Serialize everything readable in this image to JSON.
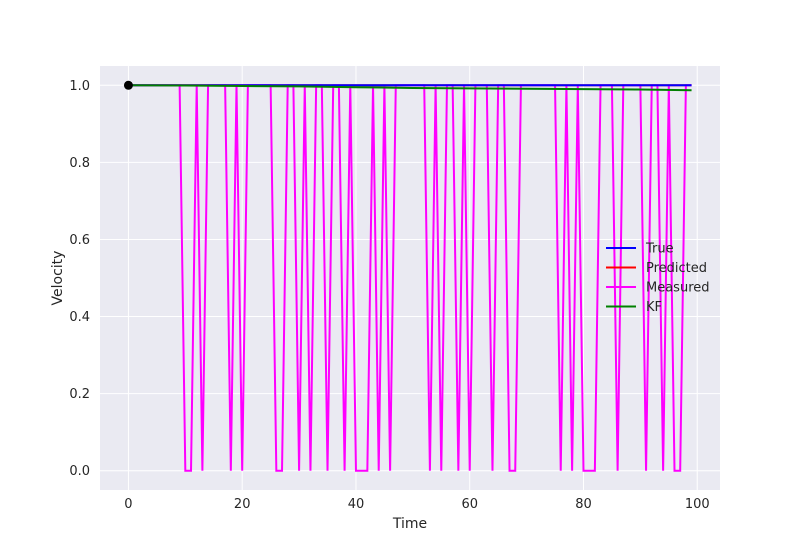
{
  "chart_data": {
    "type": "line",
    "title": "",
    "xlabel": "Time",
    "ylabel": "Velocity",
    "xlim": [
      -5,
      104
    ],
    "ylim": [
      -0.05,
      1.05
    ],
    "xticks": [
      0,
      20,
      40,
      60,
      80,
      100
    ],
    "yticks": [
      0.0,
      0.2,
      0.4,
      0.6,
      0.8,
      1.0
    ],
    "xtick_labels": [
      "0",
      "20",
      "40",
      "60",
      "80",
      "100"
    ],
    "ytick_labels": [
      "0.0",
      "0.2",
      "0.4",
      "0.6",
      "0.8",
      "1.0"
    ],
    "grid": true,
    "legend_position": "center-right",
    "background_color": "#eaeaf2",
    "series": [
      {
        "name": "True",
        "color": "#0000ff",
        "x": [
          0,
          99
        ],
        "values": [
          1.0,
          1.0
        ]
      },
      {
        "name": "Predicted",
        "color": "#ff0000",
        "x": [
          0,
          99
        ],
        "values": [
          1.0,
          1.0
        ]
      },
      {
        "name": "Measured",
        "color": "#ff00ff",
        "x": [
          0,
          1,
          2,
          3,
          4,
          5,
          6,
          7,
          8,
          9,
          10,
          11,
          12,
          13,
          14,
          15,
          16,
          17,
          18,
          19,
          20,
          21,
          22,
          23,
          24,
          25,
          26,
          27,
          28,
          29,
          30,
          31,
          32,
          33,
          34,
          35,
          36,
          37,
          38,
          39,
          40,
          41,
          42,
          43,
          44,
          45,
          46,
          47,
          48,
          49,
          50,
          51,
          52,
          53,
          54,
          55,
          56,
          57,
          58,
          59,
          60,
          61,
          62,
          63,
          64,
          65,
          66,
          67,
          68,
          69,
          70,
          71,
          72,
          73,
          74,
          75,
          76,
          77,
          78,
          79,
          80,
          81,
          82,
          83,
          84,
          85,
          86,
          87,
          88,
          89,
          90,
          91,
          92,
          93,
          94,
          95,
          96,
          97,
          98,
          99
        ],
        "values": [
          1,
          1,
          1,
          1,
          1,
          1,
          1,
          1,
          1,
          1,
          0,
          0,
          1,
          0,
          1,
          1,
          1,
          1,
          0,
          1,
          0,
          1,
          1,
          1,
          1,
          1,
          0,
          0,
          1,
          1,
          0,
          1,
          0,
          1,
          1,
          0,
          1,
          1,
          0,
          1,
          0,
          0,
          0,
          1,
          0,
          1,
          0,
          1,
          1,
          1,
          1,
          1,
          1,
          0,
          1,
          0,
          1,
          1,
          0,
          1,
          0,
          1,
          1,
          1,
          0,
          1,
          1,
          0,
          0,
          1,
          1,
          1,
          1,
          1,
          1,
          1,
          0,
          1,
          0,
          1,
          0,
          0,
          0,
          1,
          1,
          1,
          0,
          1,
          1,
          1,
          1,
          0,
          1,
          1,
          0,
          1,
          0,
          0,
          1,
          1
        ]
      },
      {
        "name": "KF",
        "color": "#008000",
        "x": [
          0,
          10,
          20,
          30,
          40,
          50,
          60,
          70,
          80,
          90,
          99
        ],
        "values": [
          1.0,
          0.9995,
          0.998,
          0.997,
          0.995,
          0.993,
          0.992,
          0.991,
          0.99,
          0.989,
          0.987
        ]
      }
    ],
    "markers": [
      {
        "x": 0,
        "y": 1.0,
        "color": "#000000"
      }
    ]
  }
}
